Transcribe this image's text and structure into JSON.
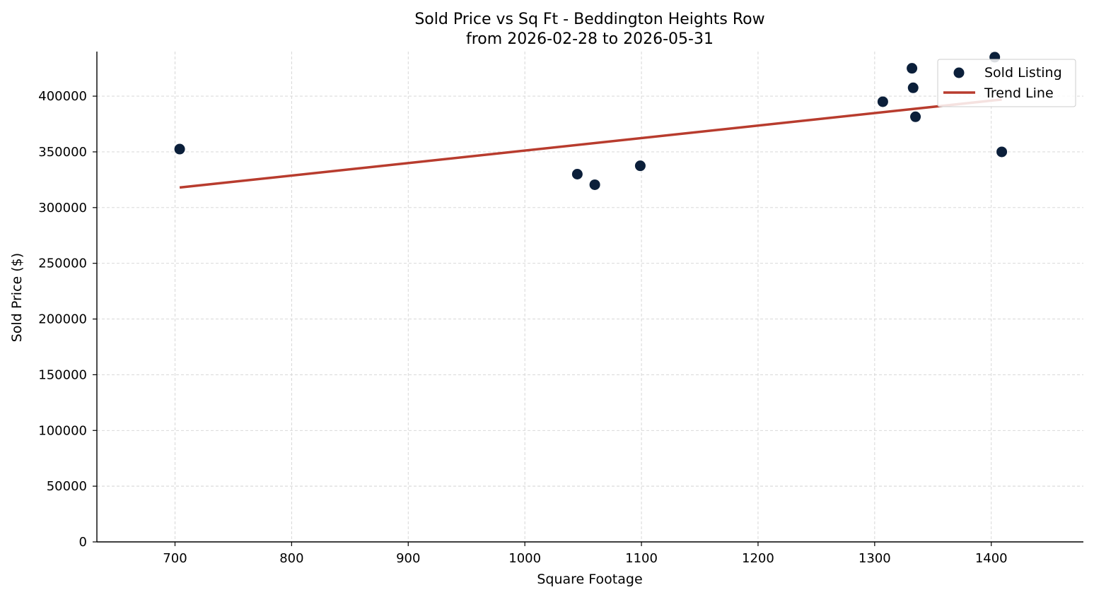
{
  "chart_data": {
    "type": "scatter",
    "title": "Sold Price vs Sq Ft - Beddington Heights Row",
    "subtitle": "from 2026-02-28 to 2026-05-31",
    "xlabel": "Square Footage",
    "ylabel": "Sold Price ($)",
    "xlim": [
      633,
      1479
    ],
    "ylim": [
      0,
      440000
    ],
    "x_ticks": [
      700,
      800,
      900,
      1000,
      1100,
      1200,
      1300,
      1400
    ],
    "y_ticks": [
      0,
      50000,
      100000,
      150000,
      200000,
      250000,
      300000,
      350000,
      400000
    ],
    "grid": true,
    "legend_position": "top-right",
    "colors": {
      "points": "#0b1f3a",
      "trend": "#b83c2e"
    },
    "series": [
      {
        "name": "Sold Listing",
        "kind": "scatter",
        "points": [
          {
            "x": 704,
            "y": 352500
          },
          {
            "x": 1045,
            "y": 330000
          },
          {
            "x": 1060,
            "y": 320500
          },
          {
            "x": 1099,
            "y": 337500
          },
          {
            "x": 1307,
            "y": 395000
          },
          {
            "x": 1332,
            "y": 425000
          },
          {
            "x": 1333,
            "y": 407500
          },
          {
            "x": 1335,
            "y": 381500
          },
          {
            "x": 1403,
            "y": 435000
          },
          {
            "x": 1409,
            "y": 350000
          }
        ]
      },
      {
        "name": "Trend Line",
        "kind": "line",
        "points": [
          {
            "x": 704,
            "y": 318000
          },
          {
            "x": 1409,
            "y": 397000
          }
        ]
      }
    ]
  }
}
